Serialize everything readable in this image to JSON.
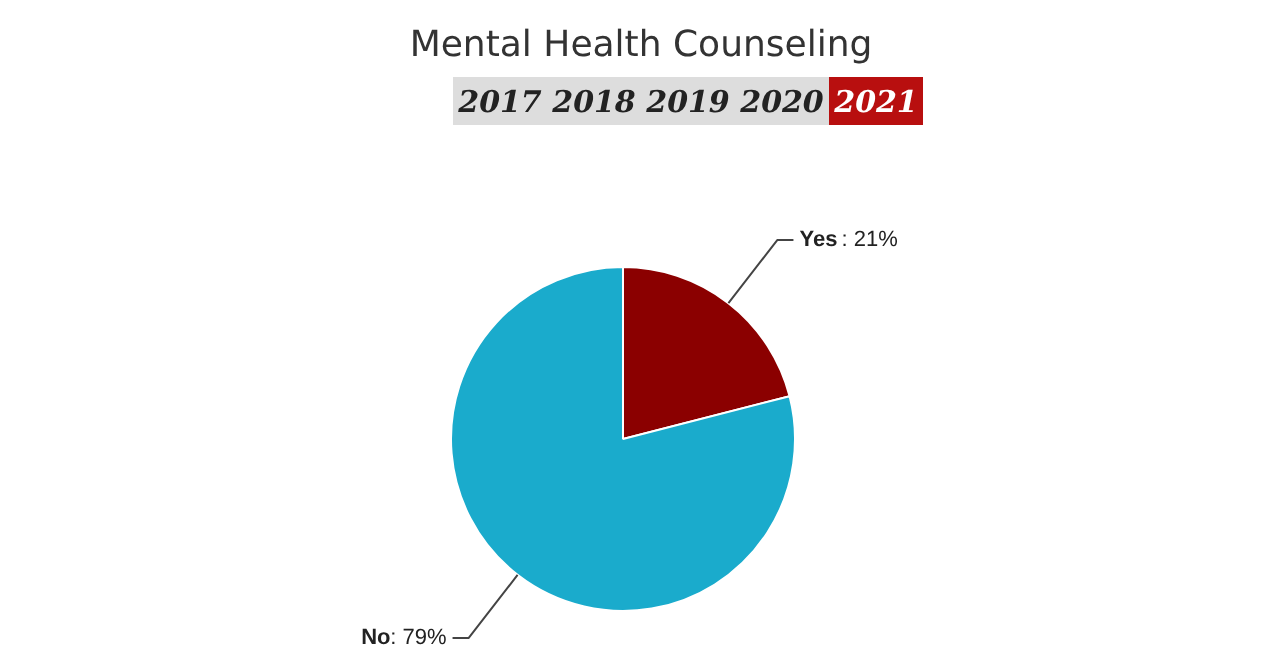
{
  "chart_data": {
    "type": "pie",
    "title": "Mental Health Counseling",
    "annotations": [
      "2017",
      "2018",
      "2019",
      "2020",
      "2021"
    ],
    "categories": [
      "Yes",
      "No"
    ],
    "values": [
      21,
      79
    ],
    "colors": [
      "#8b0000",
      "#1aabcc"
    ],
    "value_labels": [
      ": 21%",
      ": 79%"
    ]
  }
}
